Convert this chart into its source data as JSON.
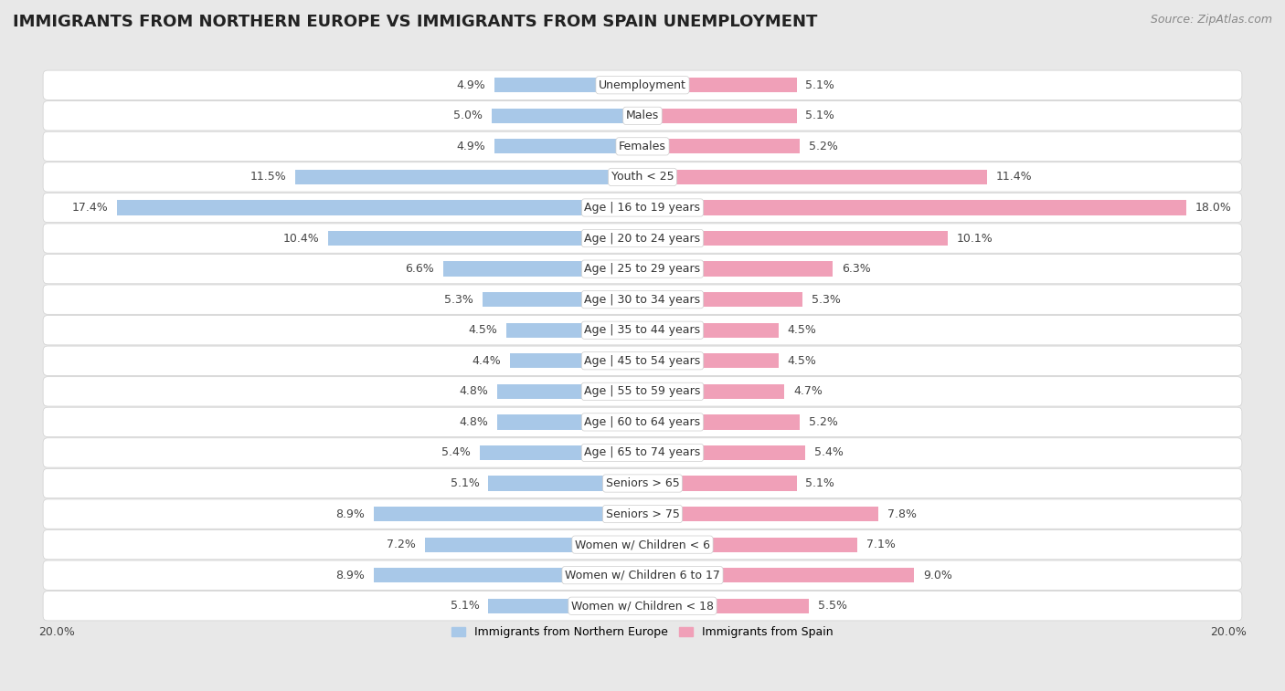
{
  "title": "IMMIGRANTS FROM NORTHERN EUROPE VS IMMIGRANTS FROM SPAIN UNEMPLOYMENT",
  "source": "Source: ZipAtlas.com",
  "categories": [
    "Unemployment",
    "Males",
    "Females",
    "Youth < 25",
    "Age | 16 to 19 years",
    "Age | 20 to 24 years",
    "Age | 25 to 29 years",
    "Age | 30 to 34 years",
    "Age | 35 to 44 years",
    "Age | 45 to 54 years",
    "Age | 55 to 59 years",
    "Age | 60 to 64 years",
    "Age | 65 to 74 years",
    "Seniors > 65",
    "Seniors > 75",
    "Women w/ Children < 6",
    "Women w/ Children 6 to 17",
    "Women w/ Children < 18"
  ],
  "left_values": [
    4.9,
    5.0,
    4.9,
    11.5,
    17.4,
    10.4,
    6.6,
    5.3,
    4.5,
    4.4,
    4.8,
    4.8,
    5.4,
    5.1,
    8.9,
    7.2,
    8.9,
    5.1
  ],
  "right_values": [
    5.1,
    5.1,
    5.2,
    11.4,
    18.0,
    10.1,
    6.3,
    5.3,
    4.5,
    4.5,
    4.7,
    5.2,
    5.4,
    5.1,
    7.8,
    7.1,
    9.0,
    5.5
  ],
  "left_color": "#a8c8e8",
  "right_color": "#f0a0b8",
  "row_bg_color": "#ffffff",
  "outer_bg_color": "#e8e8e8",
  "separator_color": "#d0d0d0",
  "axis_max": 20.0,
  "legend_left": "Immigrants from Northern Europe",
  "legend_right": "Immigrants from Spain",
  "title_fontsize": 13,
  "cat_fontsize": 9,
  "value_fontsize": 9,
  "source_fontsize": 9,
  "legend_fontsize": 9,
  "bottom_label": "20.0%"
}
